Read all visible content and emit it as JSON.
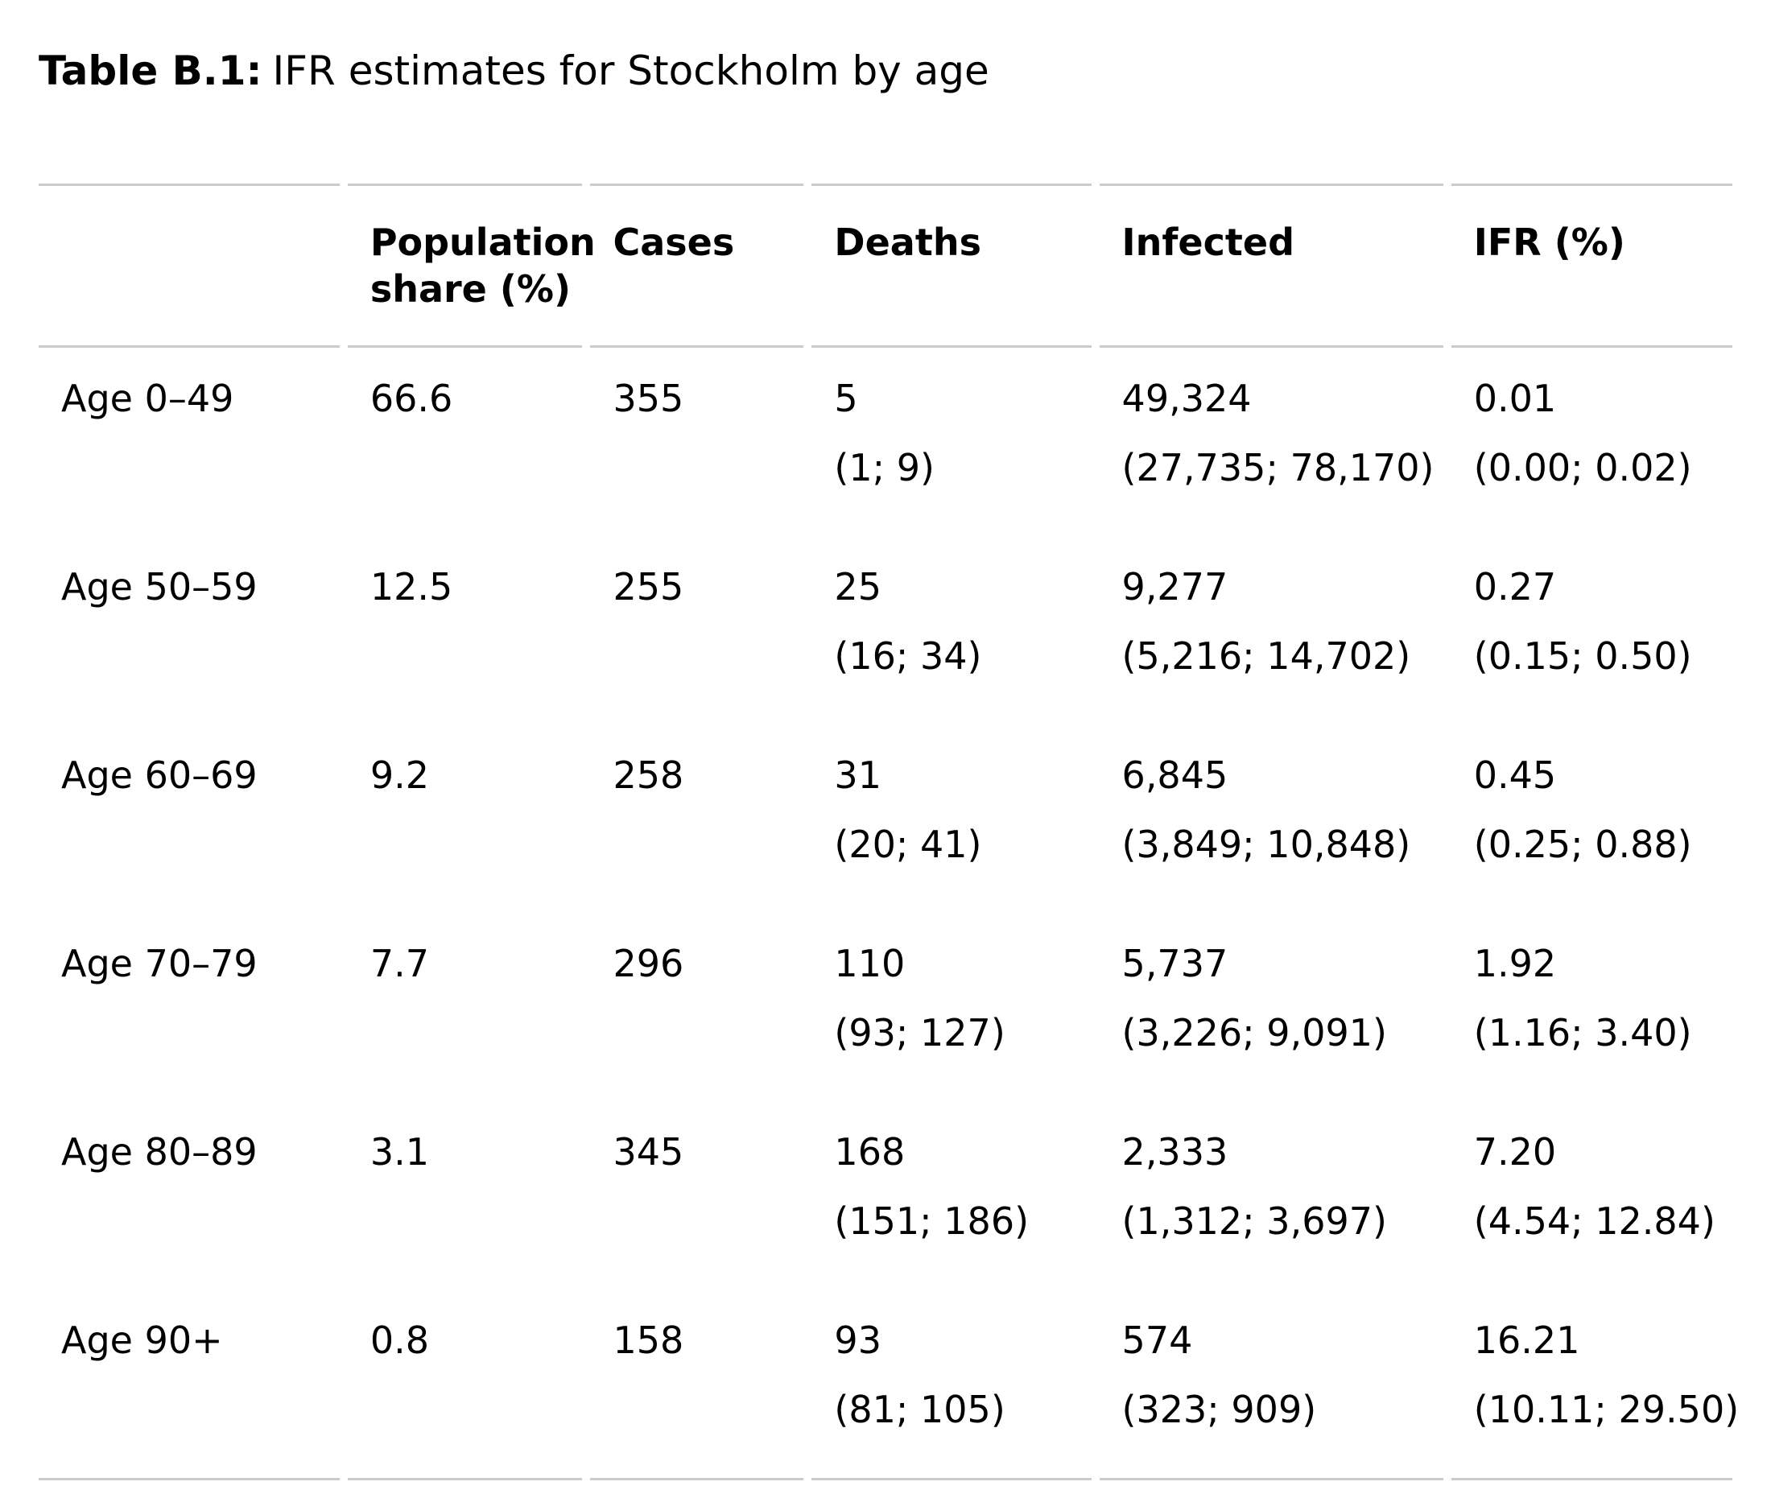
{
  "page": {
    "title_label": "Table B.1:",
    "title_caption": "IFR estimates for Stockholm by age"
  },
  "table": {
    "columns": [
      "",
      "Population share (%)",
      "Cases",
      "Deaths",
      "Infected",
      "IFR (%)"
    ],
    "rows": [
      {
        "age": "Age 0–49",
        "population_share": "66.6",
        "cases": "355",
        "deaths": "5",
        "deaths_ci": "(1; 9)",
        "infected": "49,324",
        "infected_ci": "(27,735; 78,170)",
        "ifr": "0.01",
        "ifr_ci": "(0.00; 0.02)"
      },
      {
        "age": "Age 50–59",
        "population_share": "12.5",
        "cases": "255",
        "deaths": "25",
        "deaths_ci": "(16; 34)",
        "infected": "9,277",
        "infected_ci": "(5,216; 14,702)",
        "ifr": "0.27",
        "ifr_ci": "(0.15; 0.50)"
      },
      {
        "age": "Age 60–69",
        "population_share": "9.2",
        "cases": "258",
        "deaths": "31",
        "deaths_ci": "(20; 41)",
        "infected": "6,845",
        "infected_ci": "(3,849; 10,848)",
        "ifr": "0.45",
        "ifr_ci": "(0.25; 0.88)"
      },
      {
        "age": "Age 70–79",
        "population_share": "7.7",
        "cases": "296",
        "deaths": "110",
        "deaths_ci": "(93; 127)",
        "infected": "5,737",
        "infected_ci": "(3,226; 9,091)",
        "ifr": "1.92",
        "ifr_ci": "(1.16; 3.40)"
      },
      {
        "age": "Age 80–89",
        "population_share": "3.1",
        "cases": "345",
        "deaths": "168",
        "deaths_ci": "(151; 186)",
        "infected": "2,333",
        "infected_ci": "(1,312; 3,697)",
        "ifr": "7.20",
        "ifr_ci": "(4.54; 12.84)"
      },
      {
        "age": "Age 90+",
        "population_share": "0.8",
        "cases": "158",
        "deaths": "93",
        "deaths_ci": "(81; 105)",
        "infected": "574",
        "infected_ci": "(323; 909)",
        "ifr": "16.21",
        "ifr_ci": "(10.11; 29.50)"
      }
    ]
  },
  "colors": {
    "rule": "#cbcbcb",
    "text": "#000000",
    "background": "#ffffff"
  }
}
